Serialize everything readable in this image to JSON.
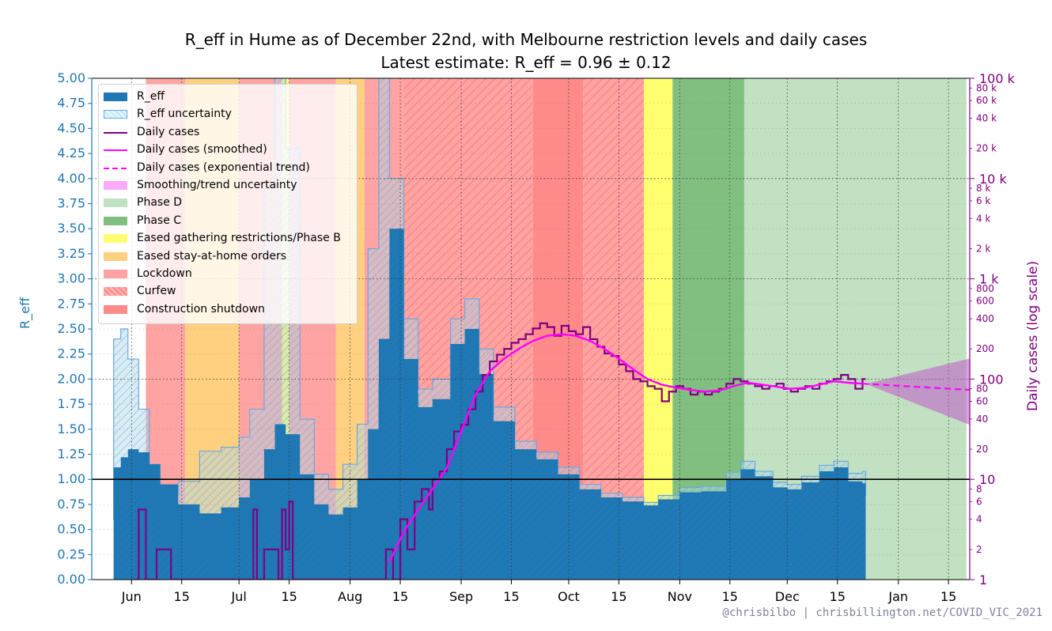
{
  "title": {
    "line1": "R_eff in Hume as of December 22nd, with Melbourne restriction levels and daily cases",
    "line2": "Latest estimate: R_eff = 0.96 ± 0.12"
  },
  "credit": "@chrisbilbo | chrisbillington.net/COVID_VIC_2021",
  "colors": {
    "reff": "#1f77b4",
    "cases": "#800080",
    "smoothed": "#ff00ff",
    "phase_d": "#c2e0c2",
    "phase_c": "#80bf80",
    "phase_b": "#ffff70",
    "eased_stay_home": "#ffd080",
    "lockdown": "#ffa3a3",
    "construction": "#ff8a8a"
  },
  "legend": [
    {
      "label": "R_eff",
      "swatch": "reff"
    },
    {
      "label": "R_eff uncertainty",
      "swatch": "reff-unc"
    },
    {
      "label": "Daily cases",
      "swatch": "cases-line"
    },
    {
      "label": "Daily cases (smoothed)",
      "swatch": "smoothed-line"
    },
    {
      "label": "Daily cases (exponential trend)",
      "swatch": "trend-line"
    },
    {
      "label": "Smoothing/trend uncertainty",
      "swatch": "smooth-unc"
    },
    {
      "label": "Phase D",
      "swatch": "phase-d"
    },
    {
      "label": "Phase C",
      "swatch": "phase-c"
    },
    {
      "label": "Eased gathering restrictions/Phase B",
      "swatch": "phase-b"
    },
    {
      "label": "Eased stay-at-home orders",
      "swatch": "eased"
    },
    {
      "label": "Lockdown",
      "swatch": "lockdown"
    },
    {
      "label": "Curfew",
      "swatch": "curfew"
    },
    {
      "label": "Construction shutdown",
      "swatch": "construction"
    }
  ],
  "chart_data": {
    "type": "area",
    "ylabel_left": "R_eff",
    "ylabel_right": "Daily cases (log scale)",
    "ylim_left": [
      0,
      5
    ],
    "ylim_right": [
      1,
      100000
    ],
    "right_scale": "log",
    "grid": true,
    "legend_position": "top-left",
    "x_ticks": [
      "Jun",
      "15",
      "Jul",
      "15",
      "Aug",
      "15",
      "Sep",
      "15",
      "Oct",
      "15",
      "Nov",
      "15",
      "Dec",
      "15",
      "Jan",
      "15"
    ],
    "y_ticks_left": [
      "0.00",
      "0.25",
      "0.50",
      "0.75",
      "1.00",
      "1.25",
      "1.50",
      "1.75",
      "2.00",
      "2.25",
      "2.50",
      "2.75",
      "3.00",
      "3.25",
      "3.50",
      "3.75",
      "4.00",
      "4.25",
      "4.50",
      "4.75",
      "5.00"
    ],
    "y_ticks_right_major": [
      "1",
      "10",
      "100",
      "1 k",
      "10 k",
      "100 k"
    ],
    "y_ticks_right_minor": [
      "2",
      "4",
      "6",
      "8",
      "20",
      "40",
      "60",
      "80",
      "200",
      "400",
      "600",
      "800",
      "2 k",
      "4 k",
      "6 k",
      "8 k",
      "20 k",
      "40 k",
      "60 k",
      "80 k"
    ],
    "reference_line": 1.0,
    "restriction_periods": [
      {
        "level": "Lockdown",
        "start": "Jun 5",
        "end": "Jun 16"
      },
      {
        "level": "Eased stay-at-home orders",
        "start": "Jun 16",
        "end": "Jul 1"
      },
      {
        "level": "Lockdown",
        "start": "Jul 1",
        "end": "Jul 13"
      },
      {
        "level": "Eased gathering restrictions/Phase B",
        "start": "Jul 13",
        "end": "Jul 15"
      },
      {
        "level": "Lockdown",
        "start": "Jul 15",
        "end": "Jul 28"
      },
      {
        "level": "Eased stay-at-home orders",
        "start": "Jul 28",
        "end": "Aug 5"
      },
      {
        "level": "Lockdown",
        "start": "Aug 5",
        "end": "Aug 16"
      },
      {
        "level": "Curfew",
        "start": "Aug 16",
        "end": "Sep 21"
      },
      {
        "level": "Construction shutdown",
        "start": "Sep 21",
        "end": "Oct 5"
      },
      {
        "level": "Curfew",
        "start": "Oct 5",
        "end": "Oct 22"
      },
      {
        "level": "Eased gathering restrictions/Phase B",
        "start": "Oct 22",
        "end": "Oct 30"
      },
      {
        "level": "Phase C",
        "start": "Oct 30",
        "end": "Nov 19"
      },
      {
        "level": "Phase D",
        "start": "Nov 19",
        "end": "Jan 20"
      }
    ],
    "reff": {
      "dates": [
        "May 27",
        "May 29",
        "May 31",
        "Jun 3",
        "Jun 6",
        "Jun 9",
        "Jun 14",
        "Jun 20",
        "Jun 26",
        "Jul 1",
        "Jul 4",
        "Jul 8",
        "Jul 11",
        "Jul 14",
        "Jul 18",
        "Jul 22",
        "Jul 26",
        "Jul 30",
        "Aug 3",
        "Aug 6",
        "Aug 9",
        "Aug 12",
        "Aug 16",
        "Aug 20",
        "Aug 24",
        "Aug 29",
        "Sep 2",
        "Sep 6",
        "Sep 10",
        "Sep 16",
        "Sep 22",
        "Sep 28",
        "Oct 4",
        "Oct 10",
        "Oct 16",
        "Oct 22",
        "Oct 26",
        "Nov 1",
        "Nov 7",
        "Nov 14",
        "Nov 18",
        "Nov 22",
        "Nov 27",
        "Dec 1",
        "Dec 5",
        "Dec 10",
        "Dec 14",
        "Dec 18",
        "Dec 22"
      ],
      "values": [
        1.12,
        1.22,
        1.3,
        1.27,
        1.15,
        0.95,
        0.75,
        0.66,
        0.72,
        0.82,
        1.0,
        1.3,
        1.55,
        1.45,
        1.05,
        0.75,
        0.65,
        0.72,
        1.0,
        1.5,
        2.4,
        3.5,
        2.2,
        1.72,
        1.8,
        2.35,
        2.5,
        2.05,
        1.58,
        1.3,
        1.2,
        1.05,
        0.9,
        0.82,
        0.78,
        0.74,
        0.8,
        0.87,
        0.88,
        1.0,
        1.1,
        1.03,
        0.92,
        0.9,
        0.97,
        1.08,
        1.12,
        0.98,
        0.96
      ],
      "lower": [
        0.6,
        0.8,
        0.95,
        0.9,
        0.6,
        0.35,
        0.15,
        0.2,
        0.35,
        0.45,
        0.55,
        0.75,
        1.05,
        0.95,
        0.55,
        0.35,
        0.2,
        0.3,
        0.5,
        0.95,
        1.95,
        3.2,
        1.85,
        1.45,
        1.55,
        2.1,
        2.3,
        1.85,
        1.45,
        1.22,
        1.14,
        1.0,
        0.86,
        0.78,
        0.74,
        0.71,
        0.76,
        0.83,
        0.84,
        0.93,
        1.03,
        0.98,
        0.87,
        0.85,
        0.92,
        1.02,
        1.06,
        0.9,
        0.84
      ],
      "upper": [
        2.4,
        2.5,
        2.2,
        1.7,
        1.15,
        0.86,
        0.98,
        1.28,
        1.32,
        1.42,
        1.7,
        3.9,
        5.0,
        4.3,
        1.6,
        1.05,
        0.9,
        1.15,
        1.55,
        3.3,
        5.0,
        4.0,
        2.6,
        1.9,
        2.0,
        2.6,
        2.8,
        2.3,
        1.72,
        1.38,
        1.27,
        1.12,
        0.95,
        0.86,
        0.82,
        0.77,
        0.84,
        0.92,
        0.93,
        1.07,
        1.18,
        1.08,
        0.97,
        0.95,
        1.03,
        1.14,
        1.18,
        1.06,
        1.08
      ]
    },
    "daily_cases": {
      "dates": [
        "Jun 2",
        "Jun 3",
        "Jun 5",
        "Jun 8",
        "Jun 12",
        "Jun 20",
        "Jul 4",
        "Jul 5",
        "Jul 6",
        "Jul 8",
        "Jul 12",
        "Jul 13",
        "Jul 14",
        "Jul 15",
        "Jul 16",
        "Jul 19",
        "Aug 7",
        "Aug 11",
        "Aug 13",
        "Aug 15",
        "Aug 17",
        "Aug 19",
        "Aug 21",
        "Aug 23",
        "Aug 24",
        "Aug 26",
        "Aug 28",
        "Aug 30",
        "Sep 1",
        "Sep 3",
        "Sep 5",
        "Sep 7",
        "Sep 9",
        "Sep 11",
        "Sep 13",
        "Sep 15",
        "Sep 17",
        "Sep 19",
        "Sep 21",
        "Sep 23",
        "Sep 25",
        "Sep 27",
        "Sep 29",
        "Oct 1",
        "Oct 3",
        "Oct 5",
        "Oct 7",
        "Oct 9",
        "Oct 11",
        "Oct 13",
        "Oct 15",
        "Oct 17",
        "Oct 19",
        "Oct 21",
        "Oct 23",
        "Oct 25",
        "Oct 27",
        "Oct 29",
        "Oct 31",
        "Nov 2",
        "Nov 4",
        "Nov 6",
        "Nov 8",
        "Nov 10",
        "Nov 12",
        "Nov 14",
        "Nov 16",
        "Nov 18",
        "Nov 20",
        "Nov 22",
        "Nov 24",
        "Nov 26",
        "Nov 28",
        "Nov 30",
        "Dec 2",
        "Dec 4",
        "Dec 6",
        "Dec 8",
        "Dec 10",
        "Dec 12",
        "Dec 14",
        "Dec 16",
        "Dec 18",
        "Dec 20",
        "Dec 22"
      ],
      "values": [
        1,
        5,
        1,
        2,
        1,
        1,
        1,
        5,
        1,
        2,
        1,
        5,
        2,
        6,
        1,
        1,
        1,
        2,
        1,
        4,
        2,
        6,
        8,
        5,
        10,
        12,
        20,
        30,
        35,
        50,
        75,
        110,
        150,
        175,
        200,
        230,
        250,
        280,
        320,
        360,
        330,
        270,
        340,
        300,
        280,
        330,
        250,
        210,
        180,
        170,
        140,
        120,
        100,
        95,
        85,
        80,
        60,
        75,
        85,
        80,
        70,
        75,
        70,
        75,
        80,
        90,
        100,
        95,
        90,
        85,
        80,
        85,
        90,
        80,
        75,
        80,
        85,
        80,
        90,
        95,
        100,
        110,
        100,
        80,
        100
      ]
    },
    "daily_cases_smoothed": {
      "dates": [
        "Aug 12",
        "Aug 16",
        "Aug 20",
        "Aug 24",
        "Aug 28",
        "Sep 1",
        "Sep 5",
        "Sep 9",
        "Sep 13",
        "Sep 17",
        "Sep 21",
        "Sep 25",
        "Sep 29",
        "Oct 3",
        "Oct 7",
        "Oct 11",
        "Oct 15",
        "Oct 19",
        "Oct 23",
        "Oct 27",
        "Oct 31",
        "Nov 4",
        "Nov 8",
        "Nov 12",
        "Nov 16",
        "Nov 20",
        "Nov 24",
        "Nov 28",
        "Dec 2",
        "Dec 6",
        "Dec 10",
        "Dec 14",
        "Dec 18",
        "Dec 22"
      ],
      "values": [
        1.5,
        3,
        5,
        8,
        13,
        30,
        70,
        120,
        160,
        200,
        240,
        270,
        280,
        270,
        240,
        200,
        160,
        125,
        100,
        88,
        82,
        78,
        75,
        77,
        85,
        92,
        88,
        84,
        80,
        82,
        88,
        95,
        92,
        90
      ]
    },
    "exponential_trend": {
      "dates": [
        "Dec 22",
        "Jan 20"
      ],
      "values": [
        90,
        78
      ]
    }
  }
}
